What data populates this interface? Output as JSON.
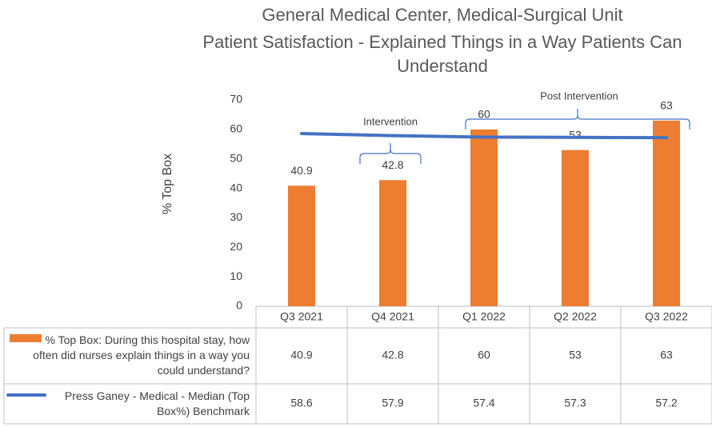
{
  "chart_data": {
    "type": "bar",
    "title": "General Medical Center, Medical-Surgical Unit",
    "subtitle": "Patient Satisfaction - Explained Things in a Way Patients Can Understand",
    "y_label": "% Top Box",
    "categories": [
      "Q3 2021",
      "Q4 2021",
      "Q1 2022",
      "Q2 2022",
      "Q3 2022"
    ],
    "series": [
      {
        "name": "% Top Box: During this hospital stay, how often did nurses explain things in a way you could understand?",
        "color": "#ed7d31",
        "type": "bar",
        "values": [
          40.9,
          42.8,
          60,
          53,
          63
        ]
      },
      {
        "name": "Press Ganey - Medical - Median (Top Box%) Benchmark",
        "color": "#4472c4",
        "type": "line",
        "values": [
          58.6,
          57.9,
          57.4,
          57.3,
          57.2
        ]
      }
    ],
    "annotations": [
      "Intervention",
      "Post Intervention"
    ],
    "ylim": [
      0,
      70
    ],
    "yticks": [
      0,
      10,
      20,
      30,
      40,
      50,
      60,
      70
    ],
    "grid": false
  }
}
